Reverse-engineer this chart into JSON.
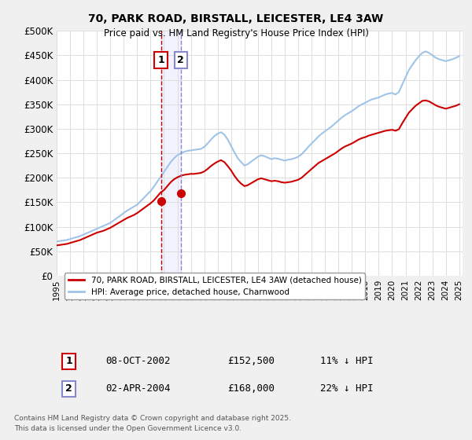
{
  "title1": "70, PARK ROAD, BIRSTALL, LEICESTER, LE4 3AW",
  "title2": "Price paid vs. HM Land Registry's House Price Index (HPI)",
  "ylabel": "",
  "bg_color": "#f0f0f0",
  "plot_bg": "#ffffff",
  "hpi_color": "#a0c4e8",
  "price_color": "#cc0000",
  "vline1_color": "#cc0000",
  "vline2_color": "#8888cc",
  "ylim": [
    0,
    500000
  ],
  "yticks": [
    0,
    50000,
    100000,
    150000,
    200000,
    250000,
    300000,
    350000,
    400000,
    450000,
    500000
  ],
  "ytick_labels": [
    "£0",
    "£50K",
    "£100K",
    "£150K",
    "£200K",
    "£250K",
    "£300K",
    "£350K",
    "£400K",
    "£450K",
    "£500K"
  ],
  "transaction1": {
    "date": "08-OCT-2002",
    "price": 152500,
    "pct": "11%",
    "label": "1",
    "year": 2002.77
  },
  "transaction2": {
    "date": "02-APR-2004",
    "price": 168000,
    "pct": "22%",
    "label": "2",
    "year": 2004.25
  },
  "legend_line1": "70, PARK ROAD, BIRSTALL, LEICESTER, LE4 3AW (detached house)",
  "legend_line2": "HPI: Average price, detached house, Charnwood",
  "footnote": "Contains HM Land Registry data © Crown copyright and database right 2025.\nThis data is licensed under the Open Government Licence v3.0.",
  "hpi_data_x": [
    1995.0,
    1995.25,
    1995.5,
    1995.75,
    1996.0,
    1996.25,
    1996.5,
    1996.75,
    1997.0,
    1997.25,
    1997.5,
    1997.75,
    1998.0,
    1998.25,
    1998.5,
    1998.75,
    1999.0,
    1999.25,
    1999.5,
    1999.75,
    2000.0,
    2000.25,
    2000.5,
    2000.75,
    2001.0,
    2001.25,
    2001.5,
    2001.75,
    2002.0,
    2002.25,
    2002.5,
    2002.75,
    2003.0,
    2003.25,
    2003.5,
    2003.75,
    2004.0,
    2004.25,
    2004.5,
    2004.75,
    2005.0,
    2005.25,
    2005.5,
    2005.75,
    2006.0,
    2006.25,
    2006.5,
    2006.75,
    2007.0,
    2007.25,
    2007.5,
    2007.75,
    2008.0,
    2008.25,
    2008.5,
    2008.75,
    2009.0,
    2009.25,
    2009.5,
    2009.75,
    2010.0,
    2010.25,
    2010.5,
    2010.75,
    2011.0,
    2011.25,
    2011.5,
    2011.75,
    2012.0,
    2012.25,
    2012.5,
    2012.75,
    2013.0,
    2013.25,
    2013.5,
    2013.75,
    2014.0,
    2014.25,
    2014.5,
    2014.75,
    2015.0,
    2015.25,
    2015.5,
    2015.75,
    2016.0,
    2016.25,
    2016.5,
    2016.75,
    2017.0,
    2017.25,
    2017.5,
    2017.75,
    2018.0,
    2018.25,
    2018.5,
    2018.75,
    2019.0,
    2019.25,
    2019.5,
    2019.75,
    2020.0,
    2020.25,
    2020.5,
    2020.75,
    2021.0,
    2021.25,
    2021.5,
    2021.75,
    2022.0,
    2022.25,
    2022.5,
    2022.75,
    2023.0,
    2023.25,
    2023.5,
    2023.75,
    2024.0,
    2024.25,
    2024.5,
    2024.75,
    2025.0
  ],
  "hpi_data_y": [
    70000,
    71000,
    72000,
    73000,
    75000,
    77000,
    79000,
    81000,
    84000,
    87000,
    90000,
    93000,
    96000,
    99000,
    102000,
    105000,
    108000,
    113000,
    118000,
    123000,
    128000,
    133000,
    137000,
    141000,
    145000,
    152000,
    159000,
    166000,
    173000,
    182000,
    192000,
    202000,
    212000,
    222000,
    232000,
    240000,
    246000,
    250000,
    253000,
    255000,
    256000,
    257000,
    258000,
    259000,
    263000,
    270000,
    278000,
    285000,
    290000,
    293000,
    288000,
    278000,
    265000,
    252000,
    240000,
    232000,
    225000,
    228000,
    233000,
    238000,
    243000,
    246000,
    244000,
    241000,
    238000,
    240000,
    239000,
    237000,
    235000,
    237000,
    238000,
    240000,
    243000,
    248000,
    255000,
    263000,
    270000,
    277000,
    284000,
    290000,
    295000,
    300000,
    305000,
    311000,
    317000,
    323000,
    328000,
    332000,
    336000,
    341000,
    346000,
    350000,
    353000,
    357000,
    360000,
    362000,
    364000,
    367000,
    370000,
    372000,
    373000,
    370000,
    375000,
    390000,
    405000,
    420000,
    430000,
    440000,
    448000,
    455000,
    458000,
    455000,
    450000,
    445000,
    442000,
    440000,
    438000,
    440000,
    442000,
    445000,
    448000
  ],
  "price_data_x": [
    1995.0,
    1995.25,
    1995.5,
    1995.75,
    1996.0,
    1996.25,
    1996.5,
    1996.75,
    1997.0,
    1997.25,
    1997.5,
    1997.75,
    1998.0,
    1998.25,
    1998.5,
    1998.75,
    1999.0,
    1999.25,
    1999.5,
    1999.75,
    2000.0,
    2000.25,
    2000.5,
    2000.75,
    2001.0,
    2001.25,
    2001.5,
    2001.75,
    2002.0,
    2002.25,
    2002.5,
    2002.75,
    2003.0,
    2003.25,
    2003.5,
    2003.75,
    2004.0,
    2004.25,
    2004.5,
    2004.75,
    2005.0,
    2005.25,
    2005.5,
    2005.75,
    2006.0,
    2006.25,
    2006.5,
    2006.75,
    2007.0,
    2007.25,
    2007.5,
    2007.75,
    2008.0,
    2008.25,
    2008.5,
    2008.75,
    2009.0,
    2009.25,
    2009.5,
    2009.75,
    2010.0,
    2010.25,
    2010.5,
    2010.75,
    2011.0,
    2011.25,
    2011.5,
    2011.75,
    2012.0,
    2012.25,
    2012.5,
    2012.75,
    2013.0,
    2013.25,
    2013.5,
    2013.75,
    2014.0,
    2014.25,
    2014.5,
    2014.75,
    2015.0,
    2015.25,
    2015.5,
    2015.75,
    2016.0,
    2016.25,
    2016.5,
    2016.75,
    2017.0,
    2017.25,
    2017.5,
    2017.75,
    2018.0,
    2018.25,
    2018.5,
    2018.75,
    2019.0,
    2019.25,
    2019.5,
    2019.75,
    2020.0,
    2020.25,
    2020.5,
    2020.75,
    2021.0,
    2021.25,
    2021.5,
    2021.75,
    2022.0,
    2022.25,
    2022.5,
    2022.75,
    2023.0,
    2023.25,
    2023.5,
    2023.75,
    2024.0,
    2024.25,
    2024.5,
    2024.75,
    2025.0
  ],
  "price_data_y": [
    62000,
    63000,
    64000,
    65000,
    67000,
    69000,
    71000,
    73000,
    76000,
    79000,
    82000,
    85000,
    88000,
    90000,
    92000,
    95000,
    98000,
    102000,
    106000,
    110000,
    114000,
    118000,
    121000,
    124000,
    128000,
    133000,
    138000,
    143000,
    148000,
    154000,
    162000,
    170000,
    175000,
    183000,
    191000,
    197000,
    201000,
    204000,
    206000,
    207000,
    208000,
    208000,
    209000,
    210000,
    213000,
    218000,
    224000,
    229000,
    233000,
    236000,
    232000,
    224000,
    215000,
    204000,
    195000,
    188000,
    183000,
    185000,
    189000,
    193000,
    197000,
    199000,
    197000,
    195000,
    193000,
    194000,
    193000,
    191000,
    190000,
    191000,
    192000,
    194000,
    196000,
    200000,
    206000,
    212000,
    218000,
    224000,
    230000,
    234000,
    238000,
    242000,
    246000,
    250000,
    255000,
    260000,
    264000,
    267000,
    270000,
    274000,
    278000,
    281000,
    283000,
    286000,
    288000,
    290000,
    292000,
    294000,
    296000,
    297000,
    298000,
    296000,
    299000,
    311000,
    322000,
    333000,
    340000,
    347000,
    352000,
    357000,
    358000,
    356000,
    352000,
    348000,
    345000,
    343000,
    341000,
    343000,
    345000,
    347000,
    350000
  ]
}
